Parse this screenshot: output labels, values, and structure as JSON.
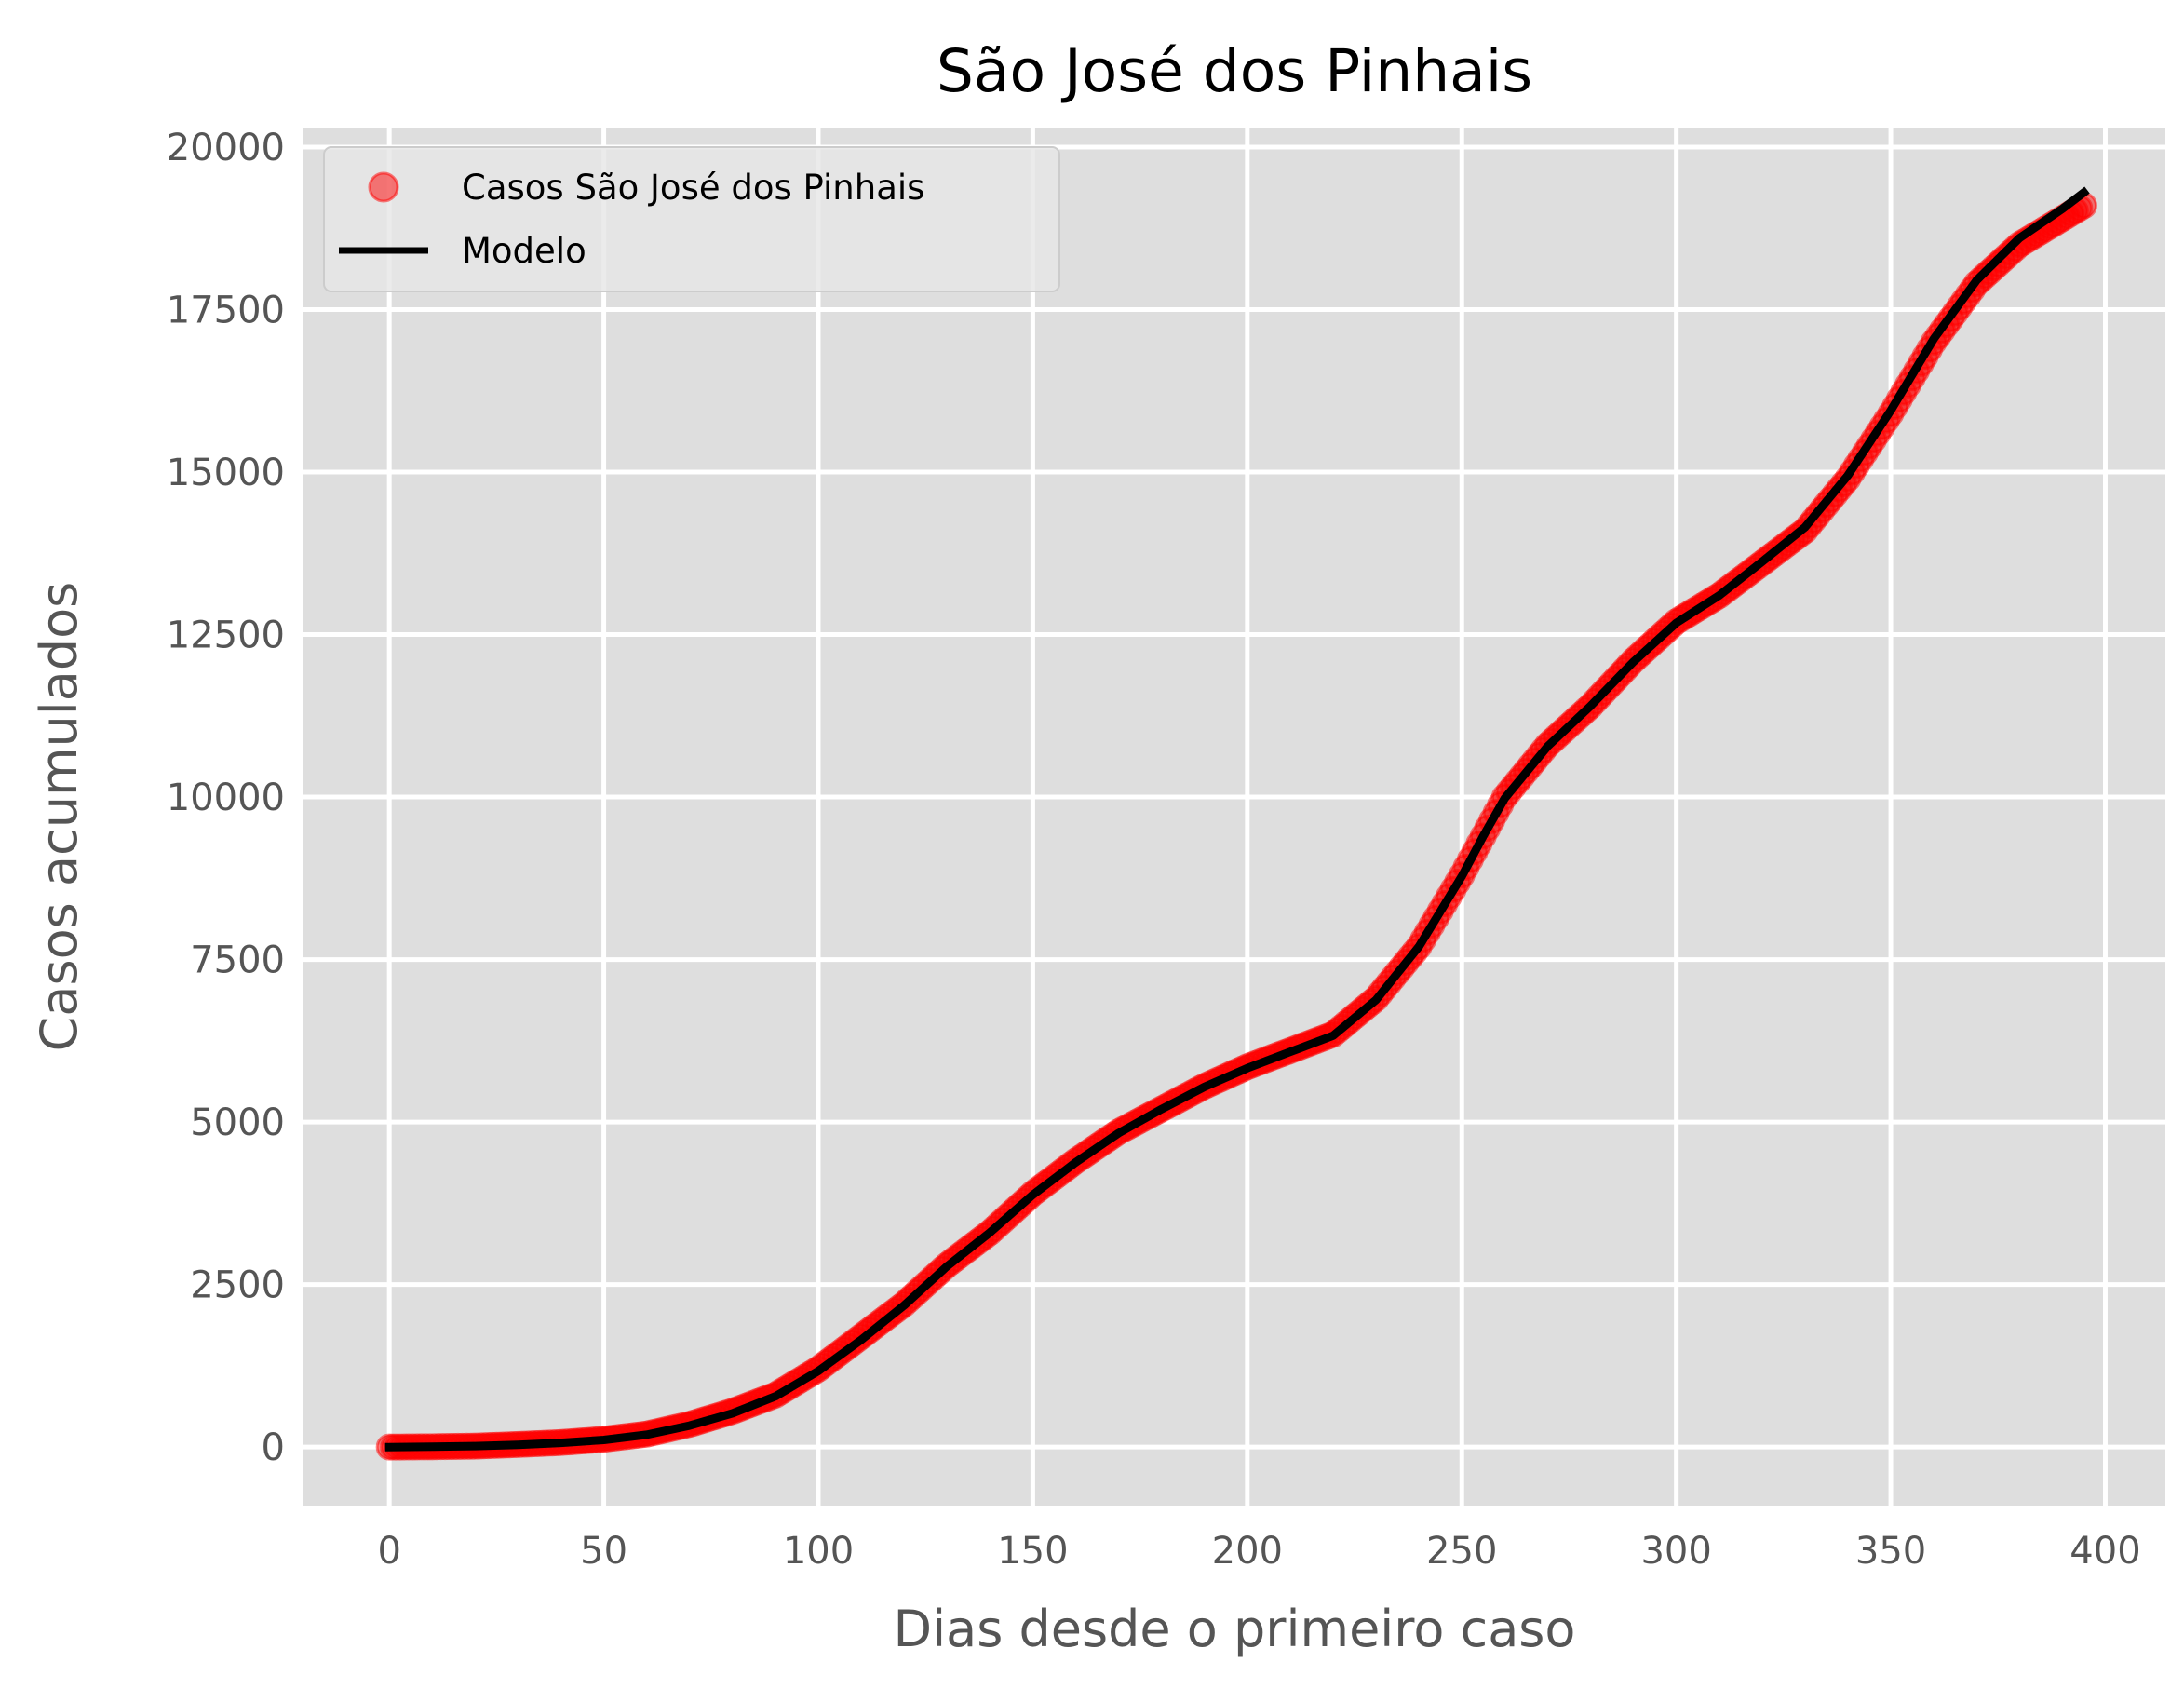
{
  "chart_data": {
    "type": "scatter",
    "title": "São José dos Pinhais",
    "xlabel": "Dias desde o primeiro caso",
    "ylabel": "Casos acumulados",
    "xlim": [
      -20,
      414
    ],
    "ylim": [
      -900,
      20300
    ],
    "xticks": [
      0,
      50,
      100,
      150,
      200,
      250,
      300,
      350,
      400
    ],
    "yticks": [
      0,
      2500,
      5000,
      7500,
      10000,
      12500,
      15000,
      17500,
      20000
    ],
    "grid": true,
    "legend_position": "top-left",
    "colors": {
      "points": "#ff0000",
      "model": "#000000",
      "background": "#dedede",
      "grid": "#ffffff"
    },
    "series": [
      {
        "name": "Casos São José dos Pinhais",
        "kind": "points",
        "x": [
          0,
          10,
          20,
          30,
          40,
          50,
          60,
          70,
          80,
          90,
          100,
          110,
          120,
          130,
          140,
          150,
          160,
          170,
          180,
          190,
          200,
          210,
          220,
          230,
          240,
          250,
          255,
          260,
          270,
          280,
          290,
          300,
          310,
          320,
          330,
          340,
          350,
          360,
          370,
          380,
          390,
          395
        ],
        "y": [
          0,
          5,
          15,
          40,
          70,
          120,
          200,
          350,
          550,
          800,
          1200,
          1700,
          2200,
          2800,
          3300,
          3900,
          4400,
          4850,
          5200,
          5550,
          5850,
          6100,
          6350,
          6900,
          7700,
          8800,
          9400,
          10000,
          10800,
          11400,
          12100,
          12700,
          13100,
          13600,
          14100,
          14900,
          15900,
          17000,
          17900,
          18500,
          18900,
          19100
        ]
      },
      {
        "name": "Modelo",
        "kind": "line",
        "x": [
          0,
          10,
          20,
          30,
          40,
          50,
          60,
          70,
          80,
          90,
          100,
          110,
          120,
          130,
          140,
          150,
          160,
          170,
          180,
          190,
          200,
          210,
          220,
          230,
          240,
          250,
          255,
          260,
          270,
          280,
          290,
          300,
          310,
          320,
          330,
          340,
          350,
          360,
          370,
          380,
          390,
          395
        ],
        "y": [
          0,
          5,
          15,
          35,
          65,
          110,
          190,
          330,
          520,
          780,
          1170,
          1650,
          2180,
          2780,
          3300,
          3880,
          4380,
          4830,
          5200,
          5540,
          5830,
          6080,
          6330,
          6880,
          7700,
          8780,
          9400,
          9980,
          10780,
          11400,
          12080,
          12680,
          13100,
          13620,
          14150,
          14950,
          15950,
          17050,
          17950,
          18600,
          19050,
          19300
        ]
      }
    ]
  }
}
